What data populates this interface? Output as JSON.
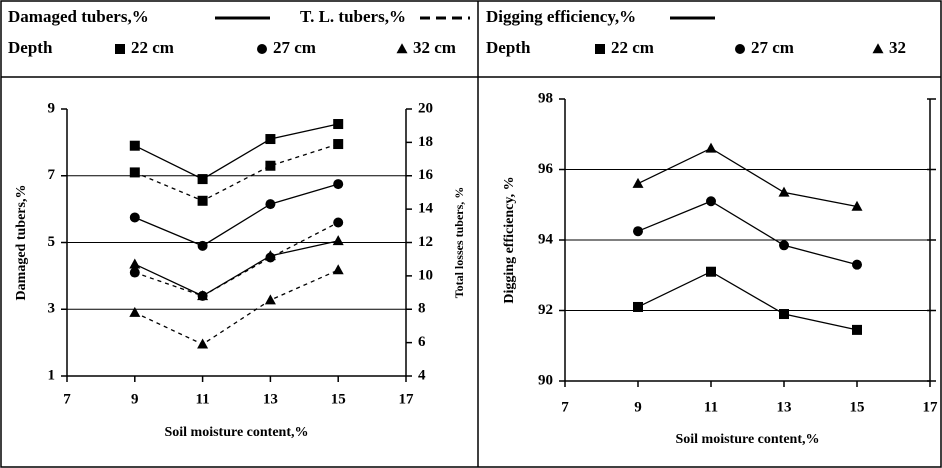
{
  "chart_data": [
    {
      "type": "line",
      "line_legend": [
        {
          "name": "Damaged tubers,%",
          "style": "solid"
        },
        {
          "name": "T. L. tubers,%",
          "style": "dashed"
        }
      ],
      "depth_label": "Depth",
      "depths": [
        {
          "name": "22 cm",
          "marker": "square"
        },
        {
          "name": "27 cm",
          "marker": "circle"
        },
        {
          "name": "32 cm",
          "marker": "triangle"
        }
      ],
      "xlabel": "Soil moisture content,%",
      "ylabel": "Damaged tubers,%",
      "y2label": "Total losses tubers, %",
      "x": [
        9,
        11,
        13,
        15
      ],
      "xlim": [
        7,
        17
      ],
      "xticks": [
        7,
        9,
        11,
        13,
        15,
        17
      ],
      "ylim": [
        1,
        9
      ],
      "yticks": [
        1,
        3,
        5,
        7,
        9
      ],
      "y2lim": [
        4,
        20
      ],
      "y2ticks": [
        4,
        6,
        8,
        10,
        12,
        14,
        16,
        18,
        20
      ],
      "grid": true,
      "color": "#000000",
      "series": [
        {
          "line": 0,
          "depth": 0,
          "values": [
            7.9,
            6.9,
            8.1,
            8.55
          ]
        },
        {
          "line": 0,
          "depth": 1,
          "values": [
            5.75,
            4.9,
            6.15,
            6.75
          ]
        },
        {
          "line": 0,
          "depth": 2,
          "values": [
            4.35,
            3.4,
            4.6,
            5.05
          ]
        },
        {
          "line": 1,
          "depth": 0,
          "axis": "y2",
          "values": [
            16.2,
            14.5,
            16.6,
            17.9
          ]
        },
        {
          "line": 1,
          "depth": 1,
          "axis": "y2",
          "values": [
            10.2,
            8.8,
            11.1,
            13.2
          ]
        },
        {
          "line": 1,
          "depth": 2,
          "axis": "y2",
          "values": [
            7.8,
            5.9,
            8.55,
            10.35
          ]
        }
      ]
    },
    {
      "type": "line",
      "line_legend": [
        {
          "name": "Digging efficiency,%",
          "style": "solid"
        }
      ],
      "depth_label": "Depth",
      "depths": [
        {
          "name": "22 cm",
          "marker": "square"
        },
        {
          "name": "27 cm",
          "marker": "circle"
        },
        {
          "name": "32",
          "marker": "triangle"
        }
      ],
      "xlabel": "Soil moisture content,%",
      "ylabel": "Digging efficiency, %",
      "x": [
        9,
        11,
        13,
        15
      ],
      "xlim": [
        7,
        17
      ],
      "xticks": [
        7,
        9,
        11,
        13,
        15,
        17
      ],
      "ylim": [
        90,
        98
      ],
      "yticks": [
        90,
        92,
        94,
        96,
        98
      ],
      "grid": true,
      "color": "#000000",
      "series": [
        {
          "line": 0,
          "depth": 0,
          "values": [
            92.1,
            93.1,
            91.9,
            91.45
          ]
        },
        {
          "line": 0,
          "depth": 1,
          "values": [
            94.25,
            95.1,
            93.85,
            93.3
          ]
        },
        {
          "line": 0,
          "depth": 2,
          "values": [
            95.6,
            96.6,
            95.35,
            94.95
          ]
        }
      ]
    }
  ]
}
